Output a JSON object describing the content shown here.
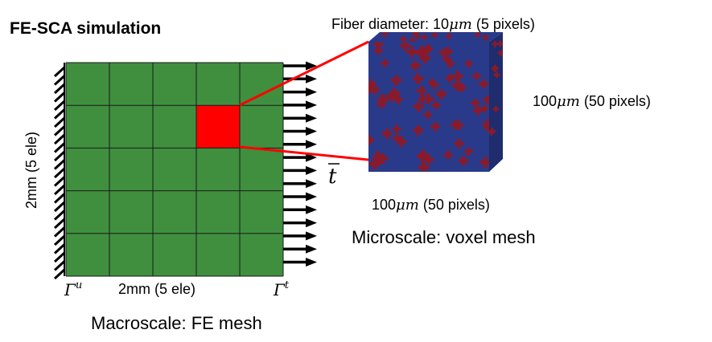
{
  "title": "FE-SCA simulation",
  "macro": {
    "caption": "Macroscale: FE mesh",
    "width_label": "2mm (5 ele)",
    "height_label": "2mm (5 ele)",
    "gamma_u": {
      "symbol": "Γ",
      "sup": "u"
    },
    "gamma_t": {
      "symbol": "Γ",
      "sup": "t"
    },
    "traction_label": "t",
    "grid": {
      "rows": 5,
      "cols": 5,
      "highlight_row": 1,
      "highlight_col": 3
    },
    "colors": {
      "mesh": "#3f8f3f",
      "highlight": "#ff0000",
      "lines": "#1a1a1a"
    }
  },
  "micro": {
    "caption": "Microscale: voxel mesh",
    "fiber_prefix": "Fiber diameter: 10",
    "fiber_unit": "μm",
    "fiber_suffix": " (5 pixels)",
    "depth_value": "100",
    "depth_unit": "μm",
    "depth_suffix": " (50 pixels)",
    "width_value": "100",
    "width_unit": "μm",
    "width_suffix": " (50 pixels)",
    "colors": {
      "matrix": "#2a3a8a",
      "matrix_side": "#1f2c6e",
      "fiber": "#8a1a2a"
    }
  }
}
